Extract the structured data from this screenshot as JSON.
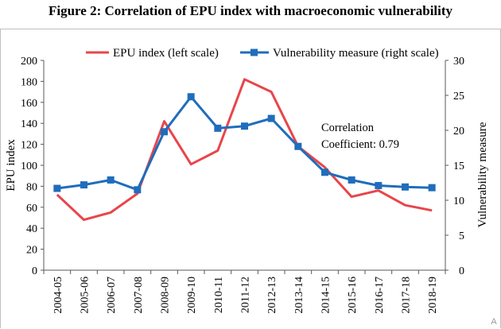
{
  "title": "Figure 2: Correlation of EPU index with macroeconomic vulnerability",
  "watermark": "A",
  "chart_data": {
    "type": "line",
    "categories": [
      "2004-05",
      "2005-06",
      "2006-07",
      "2007-08",
      "2008-09",
      "2009-10",
      "2010-11",
      "2011-12",
      "2012-13",
      "2013-14",
      "2014-15",
      "2015-16",
      "2016-17",
      "2017-18",
      "2018-19"
    ],
    "series": [
      {
        "name": "EPU index (left scale)",
        "axis": "left",
        "color": "#e8454a",
        "marker": "none",
        "values": [
          72,
          48,
          55,
          73,
          142,
          101,
          114,
          182,
          170,
          118,
          98,
          70,
          76,
          62,
          57
        ]
      },
      {
        "name": "Vulnerability measure (right scale)",
        "axis": "right",
        "color": "#1f6dbc",
        "marker": "square",
        "values": [
          11.7,
          12.2,
          12.9,
          11.5,
          19.8,
          24.8,
          20.3,
          20.6,
          21.7,
          17.7,
          14.0,
          12.9,
          12.1,
          11.9,
          11.8
        ]
      }
    ],
    "ylabel": "EPU index",
    "y2label": "Vulnerability measure",
    "ylim": [
      0,
      200
    ],
    "yticks": [
      0,
      20,
      40,
      60,
      80,
      100,
      120,
      140,
      160,
      180,
      200
    ],
    "y2lim": [
      0,
      30
    ],
    "y2ticks": [
      0,
      5,
      10,
      15,
      20,
      25,
      30
    ],
    "grid": false,
    "legend": "top",
    "annotation": [
      "Correlation",
      "Coefficient: 0.79"
    ]
  }
}
